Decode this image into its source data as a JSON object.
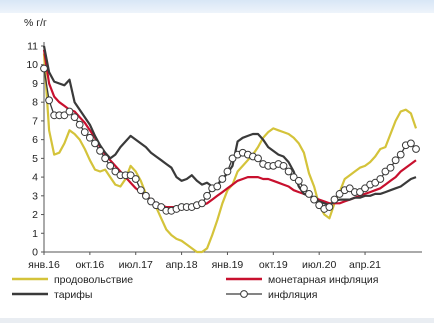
{
  "chart_data": {
    "type": "line",
    "title": "",
    "y_unit_label": "% г/г",
    "ylim": [
      0,
      11
    ],
    "yticks": [
      "0",
      "1",
      "2",
      "3",
      "4",
      "5",
      "6",
      "7",
      "8",
      "9",
      "10",
      "11"
    ],
    "x_ticks": [
      {
        "label": "янв.16",
        "date": "2016-01"
      },
      {
        "label": "окт.16",
        "date": "2016-10"
      },
      {
        "label": "июл.17",
        "date": "2017-07"
      },
      {
        "label": "апр.18",
        "date": "2018-04"
      },
      {
        "label": "янв.19",
        "date": "2019-01"
      },
      {
        "label": "окт.19",
        "date": "2019-10"
      },
      {
        "label": "июл.20",
        "date": "2020-07"
      },
      {
        "label": "апр.21",
        "date": "2021-04"
      }
    ],
    "x_start": "2016-01",
    "grid": false,
    "legend_position": "bottom",
    "series": [
      {
        "name": "продовольствие",
        "color": "#d4c33a",
        "marker": "none",
        "values": [
          10.6,
          6.5,
          5.2,
          5.3,
          5.8,
          6.5,
          6.3,
          6.0,
          5.5,
          4.9,
          4.4,
          4.3,
          4.4,
          4.0,
          3.6,
          3.5,
          3.9,
          4.6,
          4.3,
          3.8,
          3.1,
          2.7,
          2.4,
          1.8,
          1.2,
          0.9,
          0.7,
          0.6,
          0.4,
          0.2,
          0.0,
          0.0,
          0.2,
          0.9,
          1.7,
          2.6,
          3.3,
          3.6,
          4.3,
          4.6,
          4.9,
          5.2,
          5.6,
          6.1,
          6.4,
          6.6,
          6.5,
          6.4,
          6.3,
          6.1,
          5.8,
          5.3,
          4.2,
          3.5,
          2.5,
          2.0,
          1.8,
          2.6,
          3.2,
          3.9,
          4.1,
          4.3,
          4.5,
          4.6,
          4.8,
          5.1,
          5.5,
          5.6,
          6.3,
          7.0,
          7.5,
          7.6,
          7.4,
          6.6
        ]
      },
      {
        "name": "монетарная инфляция",
        "color": "#c8102e",
        "marker": "none",
        "values": [
          10.8,
          9.0,
          8.3,
          8.0,
          7.8,
          7.6,
          7.5,
          7.2,
          6.9,
          6.5,
          6.1,
          5.6,
          5.2,
          4.9,
          4.6,
          4.3,
          4.0,
          3.7,
          3.4,
          3.2,
          3.0,
          2.8,
          2.6,
          2.5,
          2.4,
          2.4,
          2.4,
          2.3,
          2.3,
          2.3,
          2.4,
          2.5,
          2.6,
          2.8,
          3.0,
          3.2,
          3.4,
          3.6,
          3.8,
          3.9,
          4.0,
          4.0,
          4.0,
          3.9,
          3.9,
          3.8,
          3.7,
          3.6,
          3.5,
          3.3,
          3.2,
          3.1,
          3.0,
          2.9,
          2.8,
          2.7,
          2.6,
          2.6,
          2.6,
          2.7,
          2.8,
          2.9,
          3.0,
          3.1,
          3.2,
          3.3,
          3.4,
          3.6,
          3.8,
          4.0,
          4.3,
          4.5,
          4.7,
          4.9
        ]
      },
      {
        "name": "тарифы",
        "color": "#3a3a3a",
        "marker": "none",
        "values": [
          11.0,
          9.6,
          9.1,
          9.0,
          8.9,
          9.2,
          8.0,
          7.6,
          7.2,
          6.8,
          6.2,
          5.7,
          5.3,
          5.0,
          5.2,
          5.6,
          5.9,
          6.2,
          6.0,
          5.8,
          5.6,
          5.3,
          5.1,
          4.9,
          4.7,
          4.5,
          4.0,
          3.8,
          3.9,
          4.1,
          3.8,
          3.6,
          3.7,
          3.5,
          3.6,
          3.9,
          4.2,
          4.6,
          5.9,
          6.1,
          6.2,
          6.3,
          6.3,
          6.0,
          5.6,
          5.4,
          5.2,
          5.1,
          4.8,
          4.3,
          3.5,
          3.1,
          3.0,
          2.9,
          2.7,
          2.6,
          2.5,
          2.7,
          2.8,
          2.8,
          2.8,
          2.9,
          2.9,
          3.0,
          3.0,
          3.1,
          3.1,
          3.2,
          3.3,
          3.4,
          3.5,
          3.7,
          3.9,
          4.0
        ]
      },
      {
        "name": "инфляция",
        "color": "#3a3a3a",
        "marker": "circle",
        "values": [
          9.8,
          8.1,
          7.3,
          7.3,
          7.3,
          7.5,
          7.2,
          6.8,
          6.4,
          6.1,
          5.8,
          5.4,
          5.0,
          4.6,
          4.3,
          4.1,
          4.1,
          4.1,
          3.9,
          3.3,
          3.0,
          2.7,
          2.5,
          2.4,
          2.2,
          2.2,
          2.3,
          2.4,
          2.4,
          2.4,
          2.5,
          2.6,
          3.0,
          3.4,
          3.5,
          3.9,
          4.3,
          5.0,
          5.2,
          5.3,
          5.2,
          5.1,
          5.0,
          4.7,
          4.6,
          4.6,
          4.7,
          4.6,
          4.3,
          4.0,
          3.8,
          3.4,
          3.1,
          2.8,
          2.5,
          2.3,
          2.4,
          2.8,
          3.1,
          3.3,
          3.4,
          3.2,
          3.2,
          3.4,
          3.6,
          3.7,
          3.9,
          4.3,
          4.5,
          4.9,
          5.2,
          5.7,
          5.8,
          5.5
        ]
      }
    ]
  }
}
